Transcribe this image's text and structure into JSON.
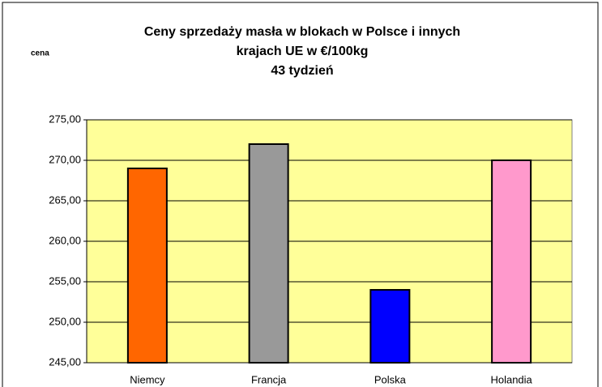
{
  "chart_data": {
    "type": "bar",
    "title": [
      "Ceny sprzedaży masła w blokach w Polsce i  innych",
      "krajach UE w €/100kg",
      "43 tydzień"
    ],
    "y_label": "cena",
    "categories": [
      "Niemcy",
      "Francja",
      "Polska",
      "Holandia"
    ],
    "values": [
      269,
      272,
      254,
      270
    ],
    "colors": [
      "#ff6600",
      "#999999",
      "#0000ff",
      "#ff99cc"
    ],
    "ylim": [
      245,
      275
    ],
    "yticks": [
      {
        "value": 245,
        "label": "245,00"
      },
      {
        "value": 250,
        "label": "250,00"
      },
      {
        "value": 255,
        "label": "255,00"
      },
      {
        "value": 260,
        "label": "260,00"
      },
      {
        "value": 265,
        "label": "265,00"
      },
      {
        "value": 270,
        "label": "270,00"
      },
      {
        "value": 275,
        "label": "275,00"
      }
    ],
    "grid": true,
    "plot_background": "#ffff99"
  }
}
